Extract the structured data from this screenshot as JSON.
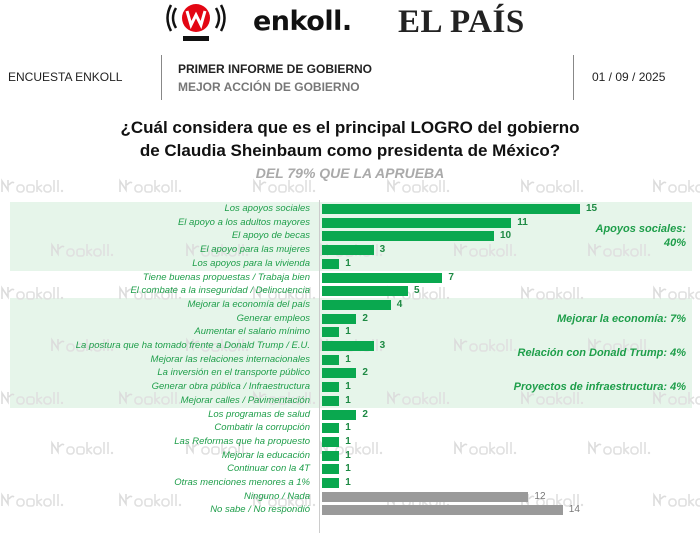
{
  "logos": {
    "w_radio": "W RADIO",
    "enkoll": "enkoll.",
    "el_pais": "EL PAÍS"
  },
  "header": {
    "left": "ENCUESTA ENKOLL",
    "title": "PRIMER INFORME DE GOBIERNO",
    "subtitle": "MEJOR ACCIÓN DE GOBIERNO",
    "date": "01 / 09 / 2025"
  },
  "watermark": "enkoll.",
  "chart_data": {
    "type": "bar",
    "orientation": "horizontal",
    "title": "¿Cuál considera que es el principal LOGRO del gobierno de Claudia Sheinbaum como presidenta de México?",
    "title_line1": "¿Cuál considera que es el principal LOGRO del gobierno",
    "title_line2": "de Claudia Sheinbaum como presidenta de México?",
    "subtitle": "DEL 79% QUE LA APRUEBA",
    "categories": [
      "Los apoyos sociales",
      "El apoyo a los adultos mayores",
      "El apoyo de becas",
      "El apoyo para las mujeres",
      "Los apoyos para la vivienda",
      "Tiene buenas propuestas / Trabaja bien",
      "El combate a la inseguridad / Delincuencia",
      "Mejorar la economía del país",
      "Generar empleos",
      "Aumentar el salario mínimo",
      "La postura que ha tomado frente a Donald Trump / E.U.",
      "Mejorar las relaciones internacionales",
      "La inversión en el transporte público",
      "Generar obra pública / Infraestructura",
      "Mejorar calles / Pavimentación",
      "Los programas de salud",
      "Combatir la corrupción",
      "Las Reformas que ha propuesto",
      "Mejorar la educación",
      "Continuar con la 4T",
      "Otras menciones menores a 1%",
      "Ninguno / Nada",
      "No sabe / No respondió"
    ],
    "values": [
      15,
      11,
      10,
      3,
      1,
      7,
      5,
      4,
      2,
      1,
      3,
      1,
      2,
      1,
      1,
      2,
      1,
      1,
      1,
      1,
      1,
      12,
      14
    ],
    "colors": {
      "main": "#0aa84f",
      "none": "#9a9a9a",
      "group_band": "#e6f5ea",
      "text": "#1e9e4a"
    },
    "gray_from_index": 21,
    "groups": [
      {
        "label_line1": "Apoyos sociales:",
        "label_line2": "40%",
        "rows": [
          0,
          4
        ]
      },
      {
        "label_line1": "Mejorar la economía: 7%",
        "rows": [
          7,
          9
        ]
      },
      {
        "label_line1": "Relación con Donald Trump: 4%",
        "rows": [
          10,
          11
        ]
      },
      {
        "label_line1": "Proyectos de infraestructura: 4%",
        "rows": [
          12,
          14
        ]
      }
    ]
  }
}
